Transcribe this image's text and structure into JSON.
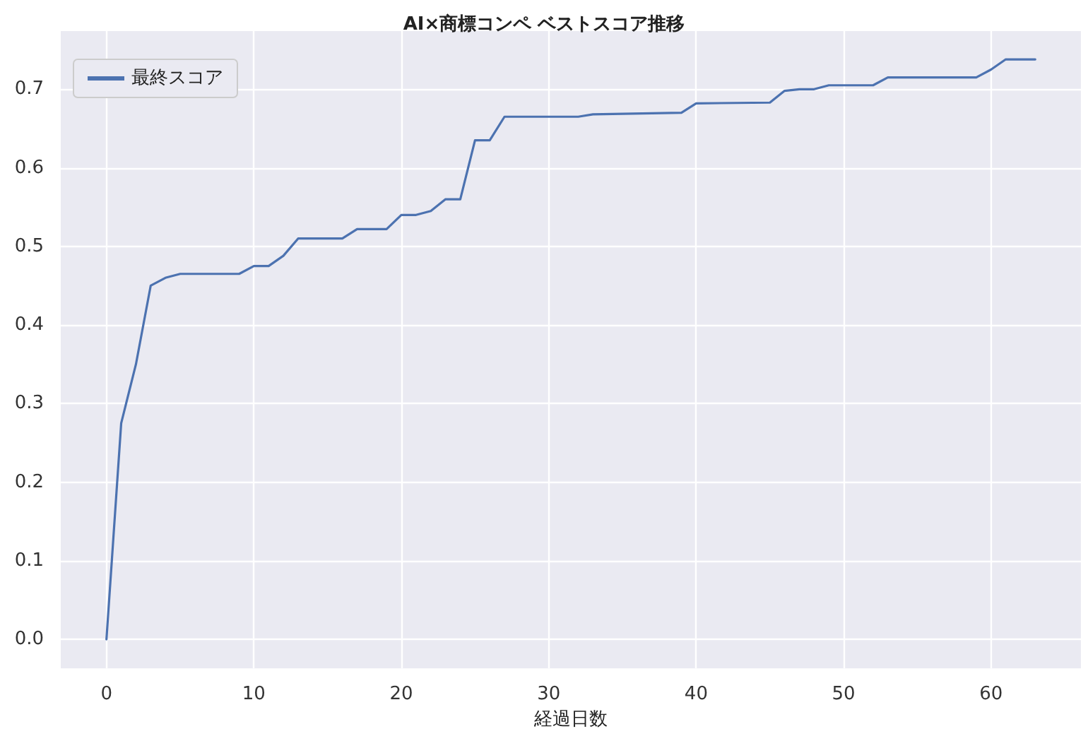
{
  "chart_data": {
    "type": "line",
    "title": "AI×商標コンペ ベストスコア推移",
    "xlabel": "経過日数",
    "x": [
      0,
      1,
      2,
      3,
      4,
      5,
      9,
      10,
      11,
      12,
      13,
      16,
      17,
      19,
      20,
      21,
      22,
      23,
      24,
      25,
      26,
      27,
      32,
      33,
      39,
      40,
      45,
      46,
      47,
      48,
      49,
      52,
      53,
      59,
      60,
      61,
      63
    ],
    "series": [
      {
        "name": "最終スコア",
        "color": "#4c72b0",
        "values": [
          0,
          0.275,
          0.35,
          0.45,
          0.46,
          0.465,
          0.465,
          0.475,
          0.475,
          0.488,
          0.51,
          0.51,
          0.522,
          0.522,
          0.54,
          0.54,
          0.545,
          0.56,
          0.56,
          0.635,
          0.635,
          0.665,
          0.665,
          0.668,
          0.67,
          0.682,
          0.683,
          0.698,
          0.7,
          0.7,
          0.705,
          0.705,
          0.715,
          0.715,
          0.725,
          0.738,
          0.738
        ]
      }
    ],
    "xlim": [
      -3.1,
      66.1
    ],
    "xticks": [
      0,
      10,
      20,
      30,
      40,
      50,
      60
    ],
    "ylim": [
      -0.037,
      0.774
    ],
    "yticks": [
      {
        "value": 0,
        "label": "0.0"
      },
      {
        "value": 0.1,
        "label": "0.1"
      },
      {
        "value": 0.2,
        "label": "0.2"
      },
      {
        "value": 0.3,
        "label": "0.3"
      },
      {
        "value": 0.4,
        "label": "0.4"
      },
      {
        "value": 0.5,
        "label": "0.5"
      },
      {
        "value": 0.6,
        "label": "0.6"
      },
      {
        "value": 0.7,
        "label": "0.7"
      }
    ],
    "grid": true,
    "legend": "top left",
    "marker": "none",
    "line_style": "solid"
  }
}
